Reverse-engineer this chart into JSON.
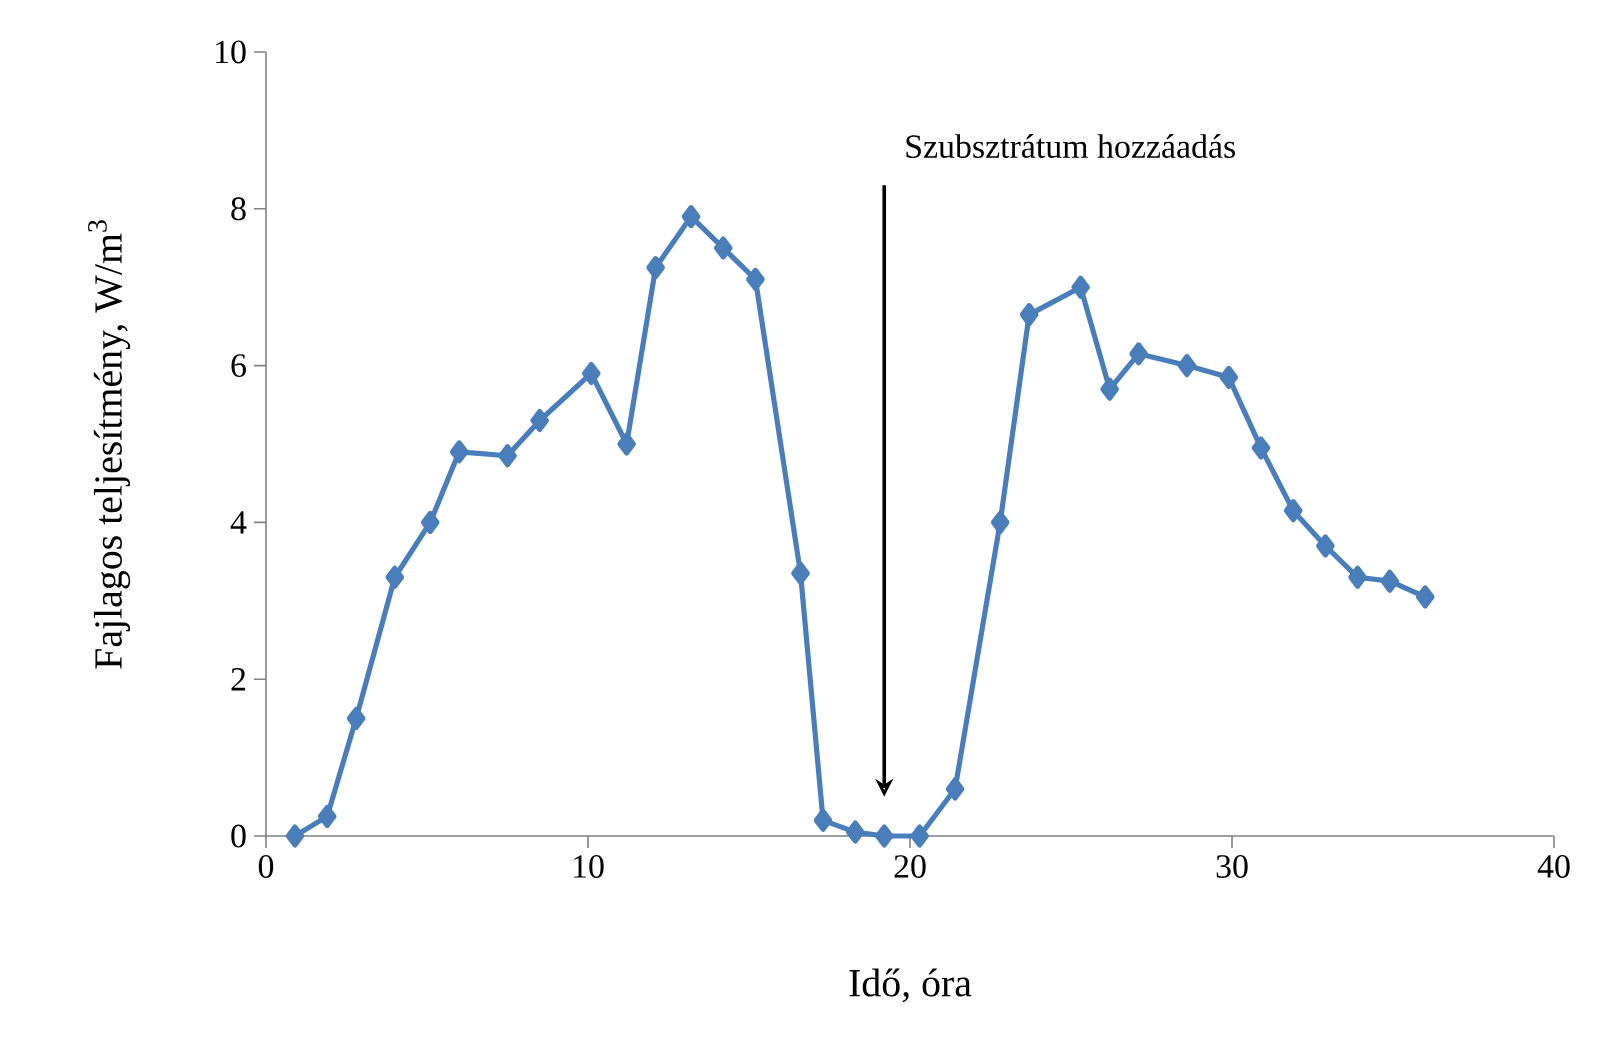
{
  "chart_data": {
    "type": "line",
    "xlabel": "Idő, óra",
    "ylabel": "Fajlagos teljesítmény, W/m$^{3}$",
    "annotations": [
      "Szubsztrátum hozzáadás"
    ],
    "x": [
      0.9,
      1.9,
      2.8,
      4.0,
      5.1,
      6.0,
      7.5,
      8.5,
      10.1,
      11.2,
      12.1,
      13.2,
      14.2,
      15.2,
      16.6,
      17.3,
      18.3,
      19.2,
      20.3,
      21.4,
      22.8,
      23.7,
      25.3,
      26.2,
      27.1,
      28.6,
      29.9,
      30.9,
      31.9,
      32.9,
      33.9,
      34.9,
      36.0
    ],
    "series": [
      {
        "color": "#4a7ebb",
        "values": [
          0,
          0.25,
          1.5,
          3.3,
          4.0,
          4.9,
          4.85,
          5.3,
          5.9,
          5.0,
          7.25,
          7.9,
          7.5,
          7.1,
          3.35,
          0.2,
          0.05,
          0,
          0,
          0.6,
          4.0,
          6.65,
          7.0,
          5.7,
          6.15,
          6.0,
          5.85,
          4.95,
          4.15,
          3.7,
          3.3,
          3.25,
          3.05
        ]
      }
    ],
    "xlim": [
      0,
      40
    ],
    "xticks": [
      0,
      10,
      20,
      30,
      40
    ],
    "ylim": [
      0,
      10
    ],
    "yticks": [
      0,
      2,
      4,
      6,
      8,
      10
    ],
    "marker": "diamond",
    "line_style": "solid",
    "grid": false
  }
}
